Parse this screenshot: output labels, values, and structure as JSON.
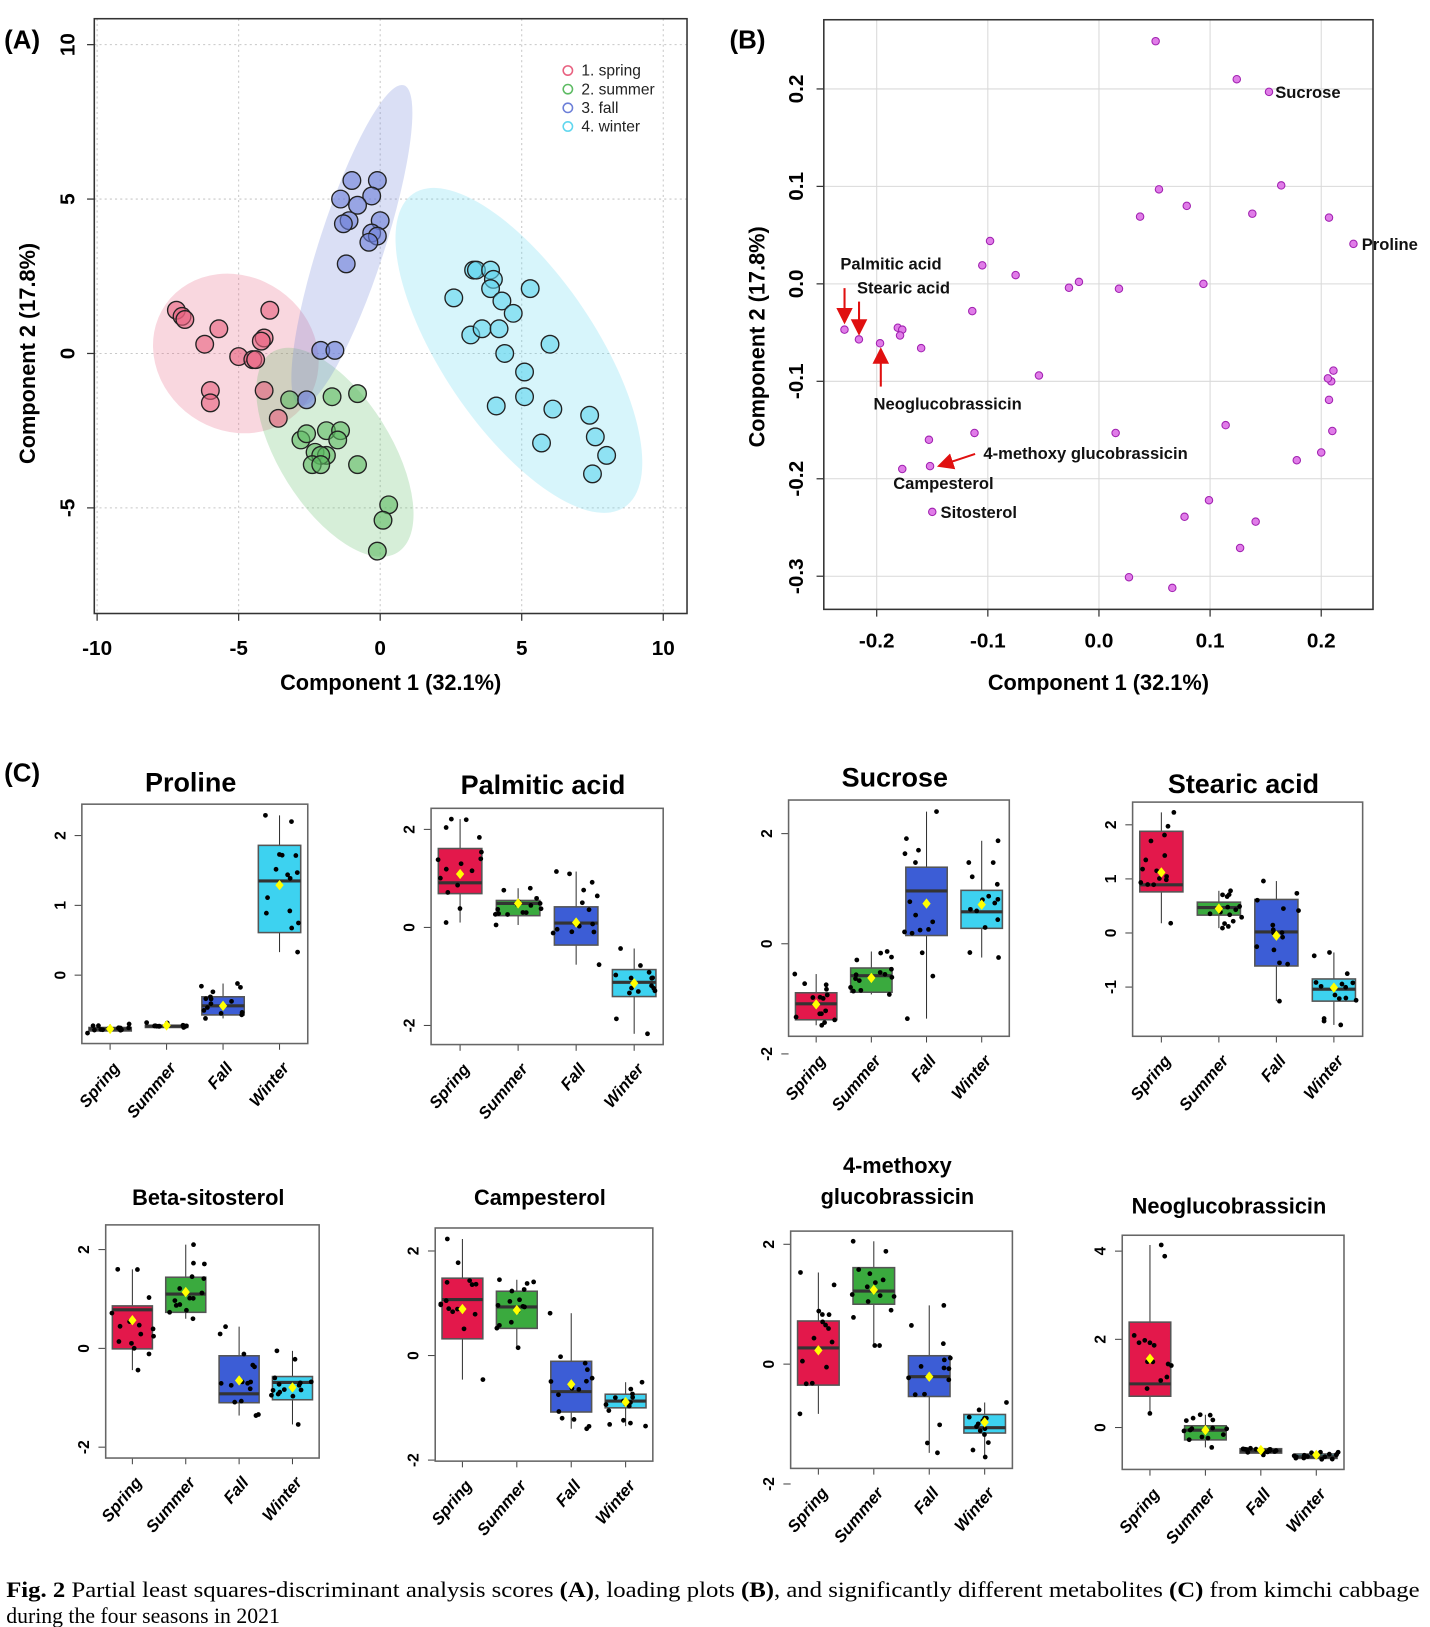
{
  "panels": {
    "a": "(A)",
    "b": "(B)",
    "c": "(C)"
  },
  "caption": {
    "line1": [
      {
        "t": "Fig. 2",
        "b": true
      },
      {
        "t": "  Partial least squares-discriminant analysis scores ",
        "b": false
      },
      {
        "t": "(A)",
        "b": true
      },
      {
        "t": ", loading plots ",
        "b": false
      },
      {
        "t": "(B)",
        "b": true
      },
      {
        "t": ", and significantly different metabolites ",
        "b": false
      },
      {
        "t": "(C)",
        "b": true
      },
      {
        "t": " from kimchi cabbage",
        "b": false
      }
    ],
    "line2": "during the four seasons in 2021"
  },
  "colors": {
    "spring": "#E3184B",
    "summer": "#3AAA3E",
    "fall": "#3C5DD6",
    "winter": "#3DD2F0",
    "loading_point": "#E07CE8",
    "loading_stroke": "#A020B0",
    "arrow": "#E01010",
    "mean_marker": "#FFFF00"
  },
  "chart_data": [
    {
      "panel": "(A)",
      "type": "scatter",
      "xlabel": "Component 1 (32.1%)",
      "ylabel": "Component 2 (17.8%)",
      "xlim": [
        -10.1,
        10.84
      ],
      "ylim": [
        -8.42,
        10.84
      ],
      "xticks": [
        "-10",
        "-5",
        "0",
        "5",
        "10"
      ],
      "yticks": [
        "-5",
        "0",
        "5",
        "10"
      ],
      "grid": true,
      "legend_position": "top-right",
      "series": [
        {
          "name": "1. spring",
          "color": "#E8607F",
          "ellipse": {
            "cx": -5.1,
            "cy": 0.0,
            "a": 2.9,
            "b": 2.6,
            "angle": 35
          },
          "points": [
            [
              -7.2,
              1.4
            ],
            [
              -7.0,
              1.2
            ],
            [
              -6.9,
              1.1
            ],
            [
              -5.7,
              0.8
            ],
            [
              -6.2,
              0.3
            ],
            [
              -3.9,
              1.4
            ],
            [
              -4.1,
              0.5
            ],
            [
              -4.2,
              0.4
            ],
            [
              -5.0,
              -0.1
            ],
            [
              -4.5,
              -0.2
            ],
            [
              -4.4,
              -0.2
            ],
            [
              -6.0,
              -1.2
            ],
            [
              -6.0,
              -1.6
            ],
            [
              -4.1,
              -1.2
            ],
            [
              -3.6,
              -2.1
            ]
          ]
        },
        {
          "name": "2. summer",
          "color": "#5DBB63",
          "ellipse": {
            "cx": -1.6,
            "cy": -3.2,
            "a": 4.0,
            "b": 1.9,
            "angle": 58
          },
          "points": [
            [
              -3.2,
              -1.5
            ],
            [
              -1.7,
              -1.4
            ],
            [
              -0.8,
              -1.3
            ],
            [
              -2.8,
              -2.8
            ],
            [
              -2.6,
              -2.6
            ],
            [
              -1.9,
              -2.5
            ],
            [
              -1.4,
              -2.5
            ],
            [
              -1.5,
              -2.8
            ],
            [
              -2.3,
              -3.2
            ],
            [
              -1.9,
              -3.3
            ],
            [
              -2.1,
              -3.3
            ],
            [
              -2.4,
              -3.6
            ],
            [
              -2.1,
              -3.6
            ],
            [
              -0.8,
              -3.6
            ],
            [
              0.3,
              -4.9
            ],
            [
              0.1,
              -5.4
            ],
            [
              -0.1,
              -6.4
            ]
          ]
        },
        {
          "name": "3. fall",
          "color": "#6C7FD8",
          "ellipse": {
            "cx": -1.0,
            "cy": 3.5,
            "a": 5.7,
            "b": 1.1,
            "angle": -72
          },
          "points": [
            [
              -1.0,
              5.6
            ],
            [
              -0.1,
              5.6
            ],
            [
              -1.4,
              5.0
            ],
            [
              -0.3,
              5.1
            ],
            [
              -0.8,
              4.8
            ],
            [
              -1.1,
              4.3
            ],
            [
              -1.3,
              4.2
            ],
            [
              0.0,
              4.3
            ],
            [
              -0.3,
              3.9
            ],
            [
              -0.1,
              3.8
            ],
            [
              -0.4,
              3.6
            ],
            [
              -1.2,
              2.9
            ],
            [
              -2.1,
              0.1
            ],
            [
              -1.6,
              0.1
            ],
            [
              -2.6,
              -1.5
            ]
          ]
        },
        {
          "name": "4. winter",
          "color": "#5FD6EE",
          "ellipse": {
            "cx": 4.9,
            "cy": 0.1,
            "a": 6.4,
            "b": 2.6,
            "angle": 56
          },
          "points": [
            [
              2.6,
              1.8
            ],
            [
              3.3,
              2.7
            ],
            [
              3.4,
              2.7
            ],
            [
              3.9,
              2.7
            ],
            [
              4.0,
              2.4
            ],
            [
              3.9,
              2.1
            ],
            [
              5.3,
              2.1
            ],
            [
              4.3,
              1.7
            ],
            [
              4.7,
              1.3
            ],
            [
              3.2,
              0.6
            ],
            [
              3.6,
              0.8
            ],
            [
              4.2,
              0.8
            ],
            [
              6.0,
              0.3
            ],
            [
              4.4,
              0.0
            ],
            [
              5.1,
              -0.6
            ],
            [
              5.1,
              -1.4
            ],
            [
              4.1,
              -1.7
            ],
            [
              6.1,
              -1.8
            ],
            [
              7.4,
              -2.0
            ],
            [
              5.7,
              -2.9
            ],
            [
              7.6,
              -2.7
            ],
            [
              8.0,
              -3.3
            ],
            [
              7.5,
              -3.9
            ]
          ]
        }
      ]
    },
    {
      "panel": "(B)",
      "type": "scatter",
      "xlabel": "Component 1 (32.1%)",
      "ylabel": "Component 2 (17.8%)",
      "xlim": [
        -0.2476,
        0.2466
      ],
      "ylim": [
        -0.334,
        0.271
      ],
      "xticks": [
        "-0.2",
        "-0.1",
        "0.0",
        "0.1",
        "0.2"
      ],
      "yticks": [
        "-0.3",
        "-0.2",
        "-0.1",
        "0.0",
        "0.1",
        "0.2"
      ],
      "grid": true,
      "points": [
        [
          0.051,
          0.249
        ],
        [
          0.124,
          0.21
        ],
        [
          0.153,
          0.197
        ],
        [
          0.164,
          0.101
        ],
        [
          0.054,
          0.097
        ],
        [
          0.079,
          0.08
        ],
        [
          0.037,
          0.069
        ],
        [
          0.138,
          0.072
        ],
        [
          0.207,
          0.068
        ],
        [
          0.229,
          0.041
        ],
        [
          -0.098,
          0.044
        ],
        [
          -0.105,
          0.019
        ],
        [
          -0.075,
          0.009
        ],
        [
          -0.018,
          0.002
        ],
        [
          -0.027,
          -0.004
        ],
        [
          0.018,
          -0.005
        ],
        [
          0.094,
          0.0
        ],
        [
          -0.114,
          -0.028
        ],
        [
          -0.229,
          -0.047
        ],
        [
          -0.216,
          -0.057
        ],
        [
          -0.197,
          -0.061
        ],
        [
          -0.181,
          -0.045
        ],
        [
          -0.177,
          -0.047
        ],
        [
          -0.179,
          -0.053
        ],
        [
          -0.16,
          -0.066
        ],
        [
          -0.054,
          -0.094
        ],
        [
          0.211,
          -0.089
        ],
        [
          0.209,
          -0.1
        ],
        [
          0.206,
          -0.097
        ],
        [
          0.207,
          -0.119
        ],
        [
          0.21,
          -0.151
        ],
        [
          0.114,
          -0.145
        ],
        [
          -0.112,
          -0.153
        ],
        [
          0.015,
          -0.153
        ],
        [
          -0.153,
          -0.16
        ],
        [
          0.178,
          -0.181
        ],
        [
          0.2,
          -0.173
        ],
        [
          -0.152,
          -0.187
        ],
        [
          -0.177,
          -0.19
        ],
        [
          -0.15,
          -0.234
        ],
        [
          0.099,
          -0.222
        ],
        [
          0.077,
          -0.239
        ],
        [
          0.141,
          -0.244
        ],
        [
          0.127,
          -0.271
        ],
        [
          0.027,
          -0.301
        ],
        [
          0.066,
          -0.312
        ]
      ],
      "annotations": [
        {
          "label": "Sucrose",
          "x": 0.153,
          "y": 0.197,
          "arrow": false
        },
        {
          "label": "Proline",
          "x": 0.229,
          "y": 0.041,
          "arrow": false
        },
        {
          "label": "Palmitic acid",
          "x": -0.229,
          "y": -0.047,
          "arrow": true
        },
        {
          "label": "Stearic acid",
          "x": -0.216,
          "y": -0.057,
          "arrow": true
        },
        {
          "label": "Neoglucobrassicin",
          "x": -0.197,
          "y": -0.061,
          "arrow": true
        },
        {
          "label": "4-methoxy glucobrassicin",
          "x": -0.152,
          "y": -0.187,
          "arrow": true
        },
        {
          "label": "Campesterol",
          "x": -0.177,
          "y": -0.19,
          "arrow": false
        },
        {
          "label": "Sitosterol",
          "x": -0.15,
          "y": -0.234,
          "arrow": false
        }
      ]
    },
    {
      "panel": "(C)",
      "type": "box",
      "title_lines": [
        "Proline"
      ],
      "categories": [
        "Spring",
        "Summer",
        "Fall",
        "Winter"
      ],
      "ylim": [
        -0.98,
        2.45
      ],
      "yticks": [
        "0",
        "1",
        "2"
      ],
      "stats": [
        [
          -0.83,
          -0.8,
          -0.77,
          -0.75,
          -0.7,
          -0.77
        ],
        [
          -0.75,
          -0.74,
          -0.73,
          -0.72,
          -0.68,
          -0.72
        ],
        [
          -0.62,
          -0.57,
          -0.44,
          -0.31,
          -0.12,
          -0.44
        ],
        [
          0.33,
          0.61,
          1.35,
          1.86,
          2.29,
          1.29
        ]
      ]
    },
    {
      "panel": "(C)",
      "type": "box",
      "title_lines": [
        "Palmitic acid"
      ],
      "categories": [
        "Spring",
        "Summer",
        "Fall",
        "Winter"
      ],
      "ylim": [
        -2.39,
        2.43
      ],
      "yticks": [
        "-2",
        "0",
        "2"
      ],
      "stats": [
        [
          0.1,
          0.69,
          0.91,
          1.61,
          2.21,
          1.09
        ],
        [
          0.05,
          0.24,
          0.49,
          0.55,
          0.8,
          0.49
        ],
        [
          -0.76,
          -0.36,
          0.09,
          0.42,
          1.14,
          0.1
        ],
        [
          -2.17,
          -1.41,
          -1.12,
          -0.86,
          -0.43,
          -1.14
        ]
      ]
    },
    {
      "panel": "(C)",
      "type": "box",
      "title_lines": [
        "Sucrose"
      ],
      "categories": [
        "Spring",
        "Summer",
        "Fall",
        "Winter"
      ],
      "ylim": [
        -1.68,
        2.61
      ],
      "yticks": [
        "-2",
        "0",
        "2"
      ],
      "stats": [
        [
          -1.48,
          -1.38,
          -1.09,
          -0.89,
          -0.55,
          -1.1
        ],
        [
          -0.92,
          -0.88,
          -0.58,
          -0.44,
          -0.14,
          -0.62
        ],
        [
          -1.36,
          0.15,
          0.96,
          1.39,
          2.4,
          0.73
        ],
        [
          -0.25,
          0.28,
          0.58,
          0.97,
          1.87,
          0.71
        ]
      ]
    },
    {
      "panel": "(C)",
      "type": "box",
      "title_lines": [
        "Stearic acid"
      ],
      "categories": [
        "Spring",
        "Summer",
        "Fall",
        "Winter"
      ],
      "ylim": [
        -1.91,
        2.42
      ],
      "yticks": [
        "-1",
        "0",
        "1",
        "2"
      ],
      "stats": [
        [
          0.18,
          0.76,
          0.89,
          1.88,
          2.23,
          1.12
        ],
        [
          0.09,
          0.33,
          0.47,
          0.57,
          0.78,
          0.45
        ],
        [
          -1.26,
          -0.61,
          0.02,
          0.62,
          0.96,
          -0.05
        ],
        [
          -1.7,
          -1.26,
          -1.04,
          -0.85,
          -0.36,
          -1.01
        ]
      ]
    },
    {
      "panel": "(C)",
      "type": "box",
      "title_lines": [
        "Beta-sitosterol"
      ],
      "categories": [
        "Spring",
        "Summer",
        "Fall",
        "Winter"
      ],
      "ylim": [
        -2.22,
        2.5
      ],
      "yticks": [
        "-2",
        "0",
        "2"
      ],
      "stats": [
        [
          -0.44,
          -0.01,
          0.78,
          0.86,
          1.6,
          0.57
        ],
        [
          0.6,
          0.73,
          1.1,
          1.44,
          2.1,
          1.14
        ],
        [
          -1.36,
          -1.1,
          -0.92,
          -0.15,
          0.44,
          -0.65
        ],
        [
          -1.54,
          -1.04,
          -0.69,
          -0.57,
          -0.05,
          -0.79
        ]
      ]
    },
    {
      "panel": "(C)",
      "type": "box",
      "title_lines": [
        "Campesterol"
      ],
      "categories": [
        "Spring",
        "Summer",
        "Fall",
        "Winter"
      ],
      "ylim": [
        -2.02,
        2.44
      ],
      "yticks": [
        "-2",
        "0",
        "2"
      ],
      "stats": [
        [
          -0.46,
          0.32,
          1.07,
          1.48,
          2.23,
          0.89
        ],
        [
          0.15,
          0.52,
          0.93,
          1.23,
          1.45,
          0.87
        ],
        [
          -1.4,
          -1.08,
          -0.69,
          -0.11,
          0.81,
          -0.55
        ],
        [
          -1.35,
          -1.0,
          -0.87,
          -0.74,
          -0.51,
          -0.89
        ]
      ]
    },
    {
      "panel": "(C)",
      "type": "box",
      "title_lines": [
        "4-methoxy",
        "glucobrassicin"
      ],
      "categories": [
        "Spring",
        "Summer",
        "Fall",
        "Winter"
      ],
      "ylim": [
        -1.74,
        2.22
      ],
      "yticks": [
        "-2",
        "0",
        "2"
      ],
      "stats": [
        [
          -0.83,
          -0.35,
          0.27,
          0.72,
          1.53,
          0.23
        ],
        [
          0.31,
          1.0,
          1.22,
          1.61,
          2.05,
          1.24
        ],
        [
          -1.48,
          -0.54,
          -0.21,
          0.14,
          0.98,
          -0.21
        ],
        [
          -1.55,
          -1.15,
          -1.06,
          -0.84,
          -0.64,
          -0.97
        ]
      ]
    },
    {
      "panel": "(C)",
      "type": "box",
      "title_lines": [
        "Neoglucobrassicin"
      ],
      "categories": [
        "Spring",
        "Summer",
        "Fall",
        "Winter"
      ],
      "ylim": [
        -0.95,
        4.36
      ],
      "yticks": [
        "0",
        "2",
        "4"
      ],
      "stats": [
        [
          0.32,
          0.71,
          0.99,
          2.39,
          4.14,
          1.56
        ],
        [
          -0.45,
          -0.28,
          -0.06,
          0.04,
          0.29,
          -0.06
        ],
        [
          -0.62,
          -0.58,
          -0.53,
          -0.48,
          -0.47,
          -0.51
        ],
        [
          -0.72,
          -0.7,
          -0.66,
          -0.6,
          -0.56,
          -0.62
        ]
      ]
    }
  ]
}
